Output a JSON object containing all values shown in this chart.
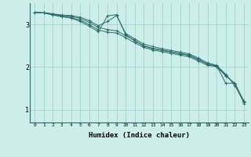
{
  "xlabel": "Humidex (Indice chaleur)",
  "ylabel": "",
  "bg_color": "#cceee8",
  "line_color": "#2d6b6b",
  "grid_color": "#99cccc",
  "xlim": [
    -0.5,
    23.5
  ],
  "ylim": [
    0.7,
    3.5
  ],
  "yticks": [
    1,
    2,
    3
  ],
  "xticks": [
    0,
    1,
    2,
    3,
    4,
    5,
    6,
    7,
    8,
    9,
    10,
    11,
    12,
    13,
    14,
    15,
    16,
    17,
    18,
    19,
    20,
    21,
    22,
    23
  ],
  "series": [
    [
      3.28,
      3.27,
      3.24,
      3.21,
      3.19,
      3.14,
      3.05,
      2.93,
      2.88,
      2.85,
      2.74,
      2.62,
      2.5,
      2.44,
      2.4,
      2.36,
      2.32,
      2.28,
      2.18,
      2.07,
      2.02,
      1.81,
      1.6,
      1.2
    ],
    [
      3.28,
      3.27,
      3.23,
      3.19,
      3.16,
      3.1,
      3.0,
      2.87,
      2.82,
      2.8,
      2.69,
      2.57,
      2.46,
      2.4,
      2.36,
      2.32,
      2.28,
      2.24,
      2.14,
      2.04,
      2.01,
      1.79,
      1.62,
      1.19
    ],
    [
      3.28,
      3.28,
      3.25,
      3.22,
      3.21,
      3.17,
      3.09,
      2.97,
      3.07,
      3.21,
      2.79,
      2.66,
      2.54,
      2.48,
      2.43,
      2.39,
      2.35,
      2.31,
      2.21,
      2.1,
      2.04,
      1.83,
      1.57,
      1.18
    ],
    [
      3.28,
      3.27,
      3.22,
      3.18,
      3.15,
      3.07,
      2.96,
      2.83,
      3.2,
      3.23,
      2.76,
      2.62,
      2.49,
      2.43,
      2.39,
      2.35,
      2.31,
      2.27,
      2.17,
      2.07,
      2.03,
      1.62,
      1.62,
      1.15
    ]
  ]
}
